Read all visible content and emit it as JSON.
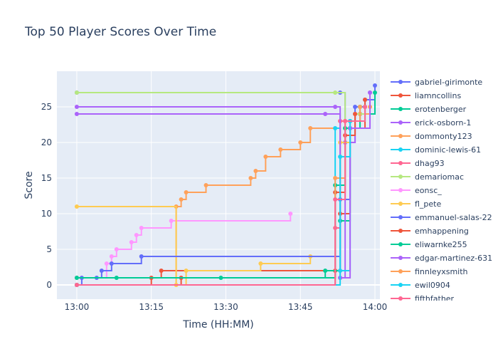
{
  "chart_data": {
    "type": "line",
    "title": "Top 50 Player Scores Over Time",
    "xlabel": "Time (HH:MM)",
    "ylabel": "Score",
    "x_ticks": [
      "13:00",
      "13:15",
      "13:30",
      "13:45",
      "14:00"
    ],
    "y_ticks": [
      "0",
      "5",
      "10",
      "15",
      "20",
      "25"
    ],
    "xlim": [
      "12:56",
      "14:01"
    ],
    "ylim": [
      -2,
      30
    ],
    "grid": true,
    "legend_position": "right",
    "line_shape": "step",
    "colors": [
      "#636efa",
      "#EF553B",
      "#00cc96",
      "#ab63fa",
      "#FFA15A",
      "#19d3f3",
      "#FF6692",
      "#B6E880",
      "#FF97FF",
      "#FECB52"
    ],
    "series": [
      {
        "name": "gabriel-girimonte",
        "color": "#636efa",
        "x": [
          "13:00",
          "13:53",
          "13:54",
          "13:56",
          "13:58",
          "14:00"
        ],
        "y": [
          27,
          27,
          20,
          25,
          26,
          28
        ]
      },
      {
        "name": "liamncollins",
        "color": "#EF553B",
        "x": [
          "13:00",
          "13:15",
          "13:17",
          "13:52",
          "13:53",
          "13:55",
          "13:58"
        ],
        "y": [
          0,
          1,
          2,
          2,
          10,
          22,
          26
        ]
      },
      {
        "name": "erotenberger",
        "color": "#00cc96",
        "x": [
          "13:00",
          "13:29",
          "13:50",
          "13:53",
          "13:55",
          "13:57",
          "14:00"
        ],
        "y": [
          1,
          1,
          2,
          9,
          22,
          24,
          27
        ]
      },
      {
        "name": "erick-osborn-1",
        "color": "#ab63fa",
        "x": [
          "13:00",
          "13:52",
          "13:53",
          "13:54",
          "13:56",
          "13:59"
        ],
        "y": [
          25,
          25,
          1,
          20,
          24,
          27
        ]
      },
      {
        "name": "dommonty123",
        "color": "#FFA15A",
        "x": [
          "13:00",
          "13:20",
          "13:21",
          "13:22",
          "13:26",
          "13:35",
          "13:36",
          "13:38",
          "13:41",
          "13:45",
          "13:47",
          "13:53",
          "13:55",
          "13:57",
          "13:59"
        ],
        "y": [
          0,
          11,
          12,
          13,
          14,
          15,
          16,
          18,
          19,
          20,
          22,
          23,
          23,
          24,
          25
        ]
      },
      {
        "name": "dominic-lewis-61",
        "color": "#19d3f3",
        "x": [
          "13:00",
          "13:52",
          "13:53",
          "13:55",
          "13:58"
        ],
        "y": [
          0,
          22,
          2,
          23,
          25
        ]
      },
      {
        "name": "dhag93",
        "color": "#FF6692",
        "x": [
          "13:00",
          "13:52",
          "13:53",
          "13:56",
          "13:58"
        ],
        "y": [
          1,
          8,
          23,
          24,
          25
        ]
      },
      {
        "name": "demariomac",
        "color": "#B6E880",
        "x": [
          "13:00",
          "13:52",
          "13:54",
          "13:56",
          "13:58"
        ],
        "y": [
          27,
          27,
          22,
          24,
          25
        ]
      },
      {
        "name": "eonsc_",
        "color": "#FF97FF",
        "x": [
          "13:00",
          "13:06",
          "13:07",
          "13:08",
          "13:11",
          "13:12",
          "13:13",
          "13:19",
          "13:43"
        ],
        "y": [
          1,
          3,
          4,
          5,
          6,
          7,
          8,
          9,
          10
        ]
      },
      {
        "name": "fl_pete",
        "color": "#FECB52",
        "x": [
          "13:00",
          "13:20",
          "13:22",
          "13:37",
          "13:47",
          "13:53",
          "13:55",
          "13:57"
        ],
        "y": [
          11,
          0,
          2,
          3,
          4,
          20,
          23,
          25
        ]
      },
      {
        "name": "emmanuel-salas-22",
        "color": "#636efa",
        "x": [
          "13:00",
          "13:01",
          "13:04",
          "13:05",
          "13:07",
          "13:13",
          "13:53",
          "13:55",
          "13:57"
        ],
        "y": [
          0,
          1,
          1,
          2,
          3,
          4,
          12,
          23,
          25
        ]
      },
      {
        "name": "emhappening",
        "color": "#EF553B",
        "x": [
          "13:00",
          "13:21",
          "13:52",
          "13:54",
          "13:56"
        ],
        "y": [
          0,
          1,
          13,
          21,
          24
        ]
      },
      {
        "name": "eliwarnke255",
        "color": "#00cc96",
        "x": [
          "13:00",
          "13:08",
          "13:52",
          "13:54",
          "13:57"
        ],
        "y": [
          1,
          1,
          14,
          22,
          25
        ]
      },
      {
        "name": "edgar-martinez-631",
        "color": "#ab63fa",
        "x": [
          "13:00",
          "13:50",
          "13:53",
          "13:55",
          "13:59"
        ],
        "y": [
          24,
          24,
          1,
          22,
          27
        ]
      },
      {
        "name": "finnleyxsmith",
        "color": "#FFA15A",
        "x": [
          "13:00",
          "13:52",
          "13:54",
          "13:57"
        ],
        "y": [
          0,
          15,
          23,
          25
        ]
      },
      {
        "name": "ewil0904",
        "color": "#19d3f3",
        "x": [
          "13:00",
          "13:53",
          "13:55",
          "13:58"
        ],
        "y": [
          0,
          18,
          23,
          25
        ]
      },
      {
        "name": "fifthfather",
        "color": "#FF6692",
        "x": [
          "13:00",
          "13:52",
          "13:54",
          "13:58"
        ],
        "y": [
          0,
          12,
          23,
          25
        ]
      }
    ]
  }
}
